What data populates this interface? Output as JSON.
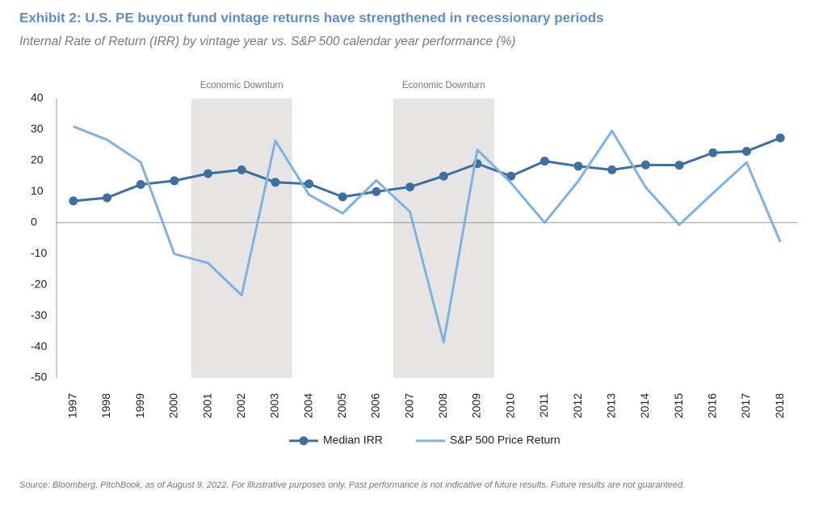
{
  "chart_data": {
    "type": "line",
    "title": "Exhibit 2: U.S. PE buyout fund vintage returns have strengthened in recessionary periods",
    "subtitle": "Internal Rate of Return (IRR) by vintage year vs. S&P 500 calendar year performance (%)",
    "categories": [
      "1997",
      "1998",
      "1999",
      "2000",
      "2001",
      "2002",
      "2003",
      "2004",
      "2005",
      "2006",
      "2007",
      "2008",
      "2009",
      "2010",
      "2011",
      "2012",
      "2013",
      "2014",
      "2015",
      "2016",
      "2017",
      "2018"
    ],
    "series": [
      {
        "name": "Median IRR",
        "color": "#3d6fa3",
        "markers": true,
        "values": [
          7,
          8,
          12.3,
          13.5,
          15.8,
          17,
          13,
          12.5,
          8.3,
          10,
          11.5,
          15,
          19,
          15,
          19.8,
          18.2,
          17,
          18.6,
          18.5,
          22.5,
          23,
          27.3
        ]
      },
      {
        "name": "S&P 500 Price Return",
        "color": "#7fb2e3",
        "markers": false,
        "values": [
          31,
          26.7,
          19.5,
          -10.1,
          -13,
          -23.4,
          26.4,
          9,
          3,
          13.6,
          3.5,
          -38.5,
          23.5,
          12.8,
          0,
          13.4,
          29.6,
          11.4,
          -0.7,
          9.5,
          19.4,
          -6.2
        ]
      }
    ],
    "shaded_regions": [
      {
        "label": "Economic Downturn",
        "start": "2001",
        "end": "2003"
      },
      {
        "label": "Economic Downturn",
        "start": "2007",
        "end": "2009"
      }
    ],
    "shade_color": "#e6e5e4",
    "ylim": [
      -50,
      40
    ],
    "yticks": [
      -50,
      -40,
      -30,
      -20,
      -10,
      0,
      10,
      20,
      30,
      40
    ],
    "legend": "bottom",
    "source": "Source: Bloomberg, PitchBook, as of August 9, 2022. For illustrative purposes only. Past performance is not indicative of future results. Future results are not guaranteed."
  }
}
